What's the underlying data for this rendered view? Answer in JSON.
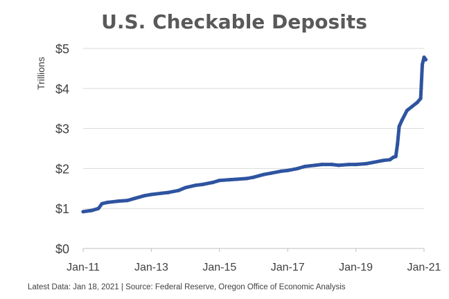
{
  "chart_data": {
    "type": "line",
    "title": "U.S. Checkable Deposits",
    "ylabel": "Trillions",
    "xlabel": "",
    "ylim": [
      0,
      5
    ],
    "xlim": [
      2011.0,
      2021.0
    ],
    "yticks": [
      {
        "value": 0,
        "label": "$0"
      },
      {
        "value": 1,
        "label": "$1"
      },
      {
        "value": 2,
        "label": "$2"
      },
      {
        "value": 3,
        "label": "$3"
      },
      {
        "value": 4,
        "label": "$4"
      },
      {
        "value": 5,
        "label": "$5"
      }
    ],
    "xticks": [
      {
        "value": 2011,
        "label": "Jan-11"
      },
      {
        "value": 2013,
        "label": "Jan-13"
      },
      {
        "value": 2015,
        "label": "Jan-15"
      },
      {
        "value": 2017,
        "label": "Jan-17"
      },
      {
        "value": 2019,
        "label": "Jan-19"
      },
      {
        "value": 2021,
        "label": "Jan-21"
      }
    ],
    "grid": true,
    "series": [
      {
        "name": "Checkable Deposits",
        "color": "#2e54a0",
        "x": [
          2011.0,
          2011.25,
          2011.45,
          2011.55,
          2011.7,
          2012.0,
          2012.3,
          2012.5,
          2012.8,
          2013.0,
          2013.3,
          2013.5,
          2013.8,
          2014.0,
          2014.3,
          2014.5,
          2014.8,
          2015.0,
          2015.3,
          2015.5,
          2015.8,
          2016.0,
          2016.3,
          2016.5,
          2016.8,
          2017.0,
          2017.3,
          2017.5,
          2017.8,
          2018.0,
          2018.3,
          2018.5,
          2018.8,
          2019.0,
          2019.3,
          2019.5,
          2019.8,
          2020.0,
          2020.1,
          2020.17,
          2020.22,
          2020.27,
          2020.35,
          2020.5,
          2020.65,
          2020.8,
          2020.9,
          2020.95,
          2021.0,
          2021.05
        ],
        "values": [
          0.92,
          0.95,
          1.0,
          1.12,
          1.15,
          1.18,
          1.2,
          1.25,
          1.32,
          1.35,
          1.38,
          1.4,
          1.45,
          1.52,
          1.58,
          1.6,
          1.65,
          1.7,
          1.72,
          1.73,
          1.75,
          1.78,
          1.85,
          1.88,
          1.93,
          1.95,
          2.0,
          2.05,
          2.08,
          2.1,
          2.1,
          2.08,
          2.1,
          2.1,
          2.12,
          2.15,
          2.2,
          2.22,
          2.28,
          2.3,
          2.6,
          3.05,
          3.2,
          3.45,
          3.55,
          3.65,
          3.75,
          4.6,
          4.78,
          4.72
        ]
      }
    ]
  },
  "footer": {
    "text": "Latest Data: Jan 18, 2021  |  Source: Federal Reserve, Oregon Office of Economic Analysis"
  }
}
